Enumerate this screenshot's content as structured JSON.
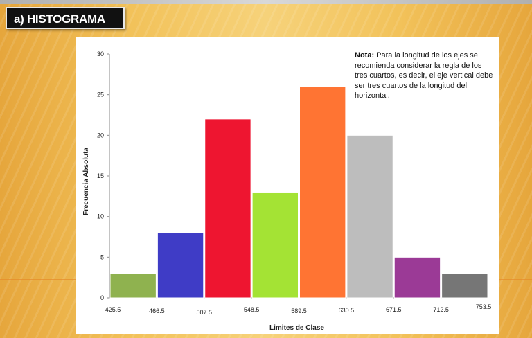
{
  "slide": {
    "title": "a) HISTOGRAMA"
  },
  "note": {
    "label": "Nota:",
    "text": " Para la longitud de los ejes se recomienda considerar la regla de los tres cuartos, es decir, el eje vertical debe ser tres cuartos de la longitud del horizontal."
  },
  "chart_data": {
    "type": "bar",
    "title": "",
    "xlabel": "Limites de Clase",
    "ylabel": "Frecuencia Absoluta",
    "ylim": [
      0,
      30
    ],
    "yticks": [
      0,
      5,
      10,
      15,
      20,
      25,
      30
    ],
    "class_limits": [
      "425.5",
      "466.5",
      "507.5",
      "548.5",
      "589.5",
      "630.5",
      "671.5",
      "712.5",
      "753.5"
    ],
    "values": [
      3,
      8,
      22,
      13,
      26,
      20,
      5,
      3
    ],
    "colors": [
      "#8fb24f",
      "#3f3cc6",
      "#ee1530",
      "#a4e334",
      "#ff7433",
      "#bdbdbd",
      "#9b3a96",
      "#767676"
    ],
    "grid": false,
    "legend": "none"
  }
}
